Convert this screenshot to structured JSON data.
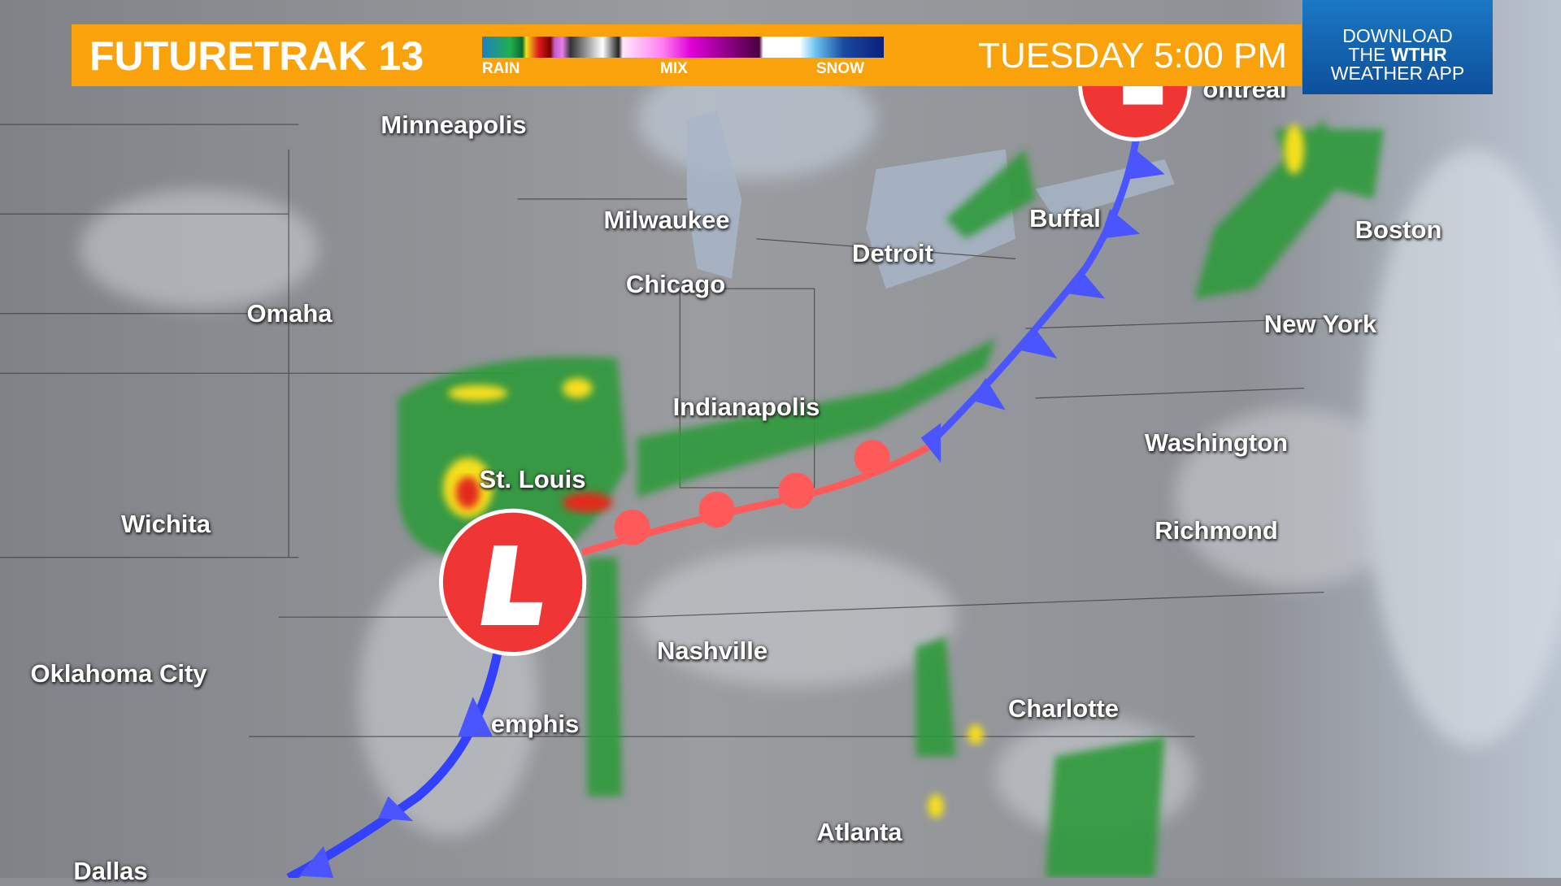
{
  "header": {
    "title": "FUTURETRAK 13",
    "legend": {
      "rain": "RAIN",
      "mix": "MIX",
      "snow": "SNOW"
    },
    "time": "TUESDAY 5:00 PM"
  },
  "promo": {
    "line1": "DOWNLOAD",
    "line2_pre": "THE ",
    "line2_brand": "WTHR",
    "line3": "WEATHER APP"
  },
  "colors": {
    "bar": "#f9a20c",
    "promo": "#1565b0",
    "cold_front": "#3340ff",
    "warm_front": "#ff4a4a",
    "low": "#f03030"
  },
  "low_symbol": "L",
  "cities": {
    "minneapolis": "Minneapolis",
    "milwaukee": "Milwaukee",
    "chicago": "Chicago",
    "detroit": "Detroit",
    "buffalo": "Buffal",
    "montreal": "ontreal",
    "boston": "Boston",
    "new_york": "New York",
    "omaha": "Omaha",
    "indianapolis": "Indianapolis",
    "washington": "Washington",
    "st_louis": "St. Louis",
    "wichita": "Wichita",
    "richmond": "Richmond",
    "oklahoma_city": "Oklahoma City",
    "nashville": "Nashville",
    "memphis": "emphis",
    "charlotte": "Charlotte",
    "atlanta": "Atlanta",
    "dallas": "Dallas"
  }
}
